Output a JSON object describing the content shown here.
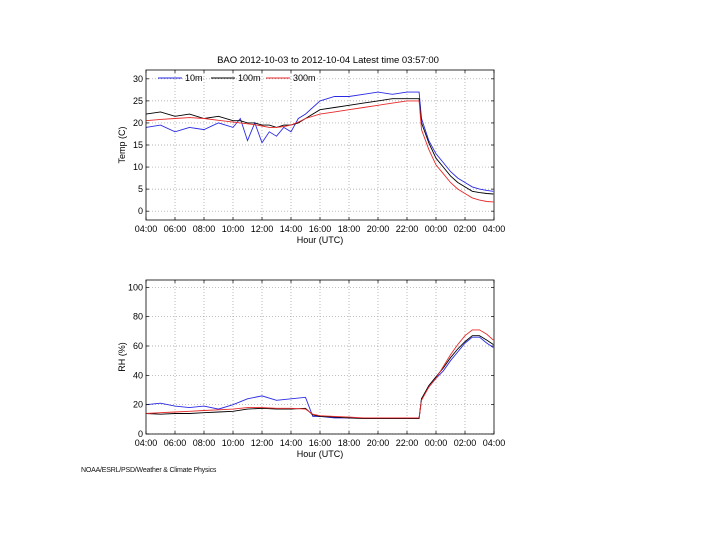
{
  "chart_data": [
    {
      "type": "line",
      "title": "BAO 2012-10-03 to 2012-10-04 Latest time 03:57:00",
      "xlabel": "Hour (UTC)",
      "ylabel": "Temp (C)",
      "xlim": [
        "04:00",
        "04:00"
      ],
      "ylim": [
        -2,
        32
      ],
      "yticks": [
        0,
        5,
        10,
        15,
        20,
        25,
        30
      ],
      "xticks": [
        "04:00",
        "06:00",
        "08:00",
        "10:00",
        "12:00",
        "14:00",
        "16:00",
        "18:00",
        "20:00",
        "22:00",
        "00:00",
        "02:00",
        "04:00"
      ],
      "grid": true,
      "legend": "top-left",
      "x": [
        "04:00",
        "05:00",
        "06:00",
        "07:00",
        "08:00",
        "09:00",
        "10:00",
        "10:30",
        "11:00",
        "11:30",
        "12:00",
        "12:30",
        "13:00",
        "13:30",
        "14:00",
        "14:30",
        "15:00",
        "16:00",
        "17:00",
        "18:00",
        "19:00",
        "20:00",
        "21:00",
        "22:00",
        "22:50",
        "23:00",
        "23:30",
        "00:00",
        "00:30",
        "01:00",
        "01:30",
        "02:00",
        "02:30",
        "03:00",
        "03:30",
        "03:57"
      ],
      "series": [
        {
          "name": "10m",
          "color": "#2a2ae6",
          "values": [
            19,
            19.5,
            18,
            19,
            18.5,
            20,
            19,
            21,
            16,
            20,
            15.5,
            18,
            17,
            19,
            18,
            21,
            22,
            25,
            26,
            26,
            26.5,
            27,
            26.5,
            27,
            27,
            21,
            16,
            13,
            11,
            9,
            7.5,
            6.5,
            5.5,
            5,
            4.7,
            4.5
          ]
        },
        {
          "name": "100m",
          "color": "#000000",
          "values": [
            22,
            22.5,
            21.5,
            22,
            21,
            21.5,
            20.5,
            20.5,
            20,
            20,
            19.5,
            19.5,
            19,
            19.5,
            19.5,
            20,
            21,
            23,
            23.5,
            24,
            24.5,
            25,
            25.5,
            25.5,
            25.5,
            20,
            15.5,
            12,
            10,
            8,
            6.5,
            5.5,
            4.5,
            4.2,
            4,
            3.9
          ]
        },
        {
          "name": "300m",
          "color": "#e82a2a",
          "values": [
            20.5,
            20.8,
            21,
            21.2,
            21,
            20.6,
            20.2,
            20,
            19.8,
            19.6,
            19.3,
            19,
            19,
            19.2,
            19.5,
            20.2,
            21,
            22,
            22.5,
            23,
            23.5,
            24,
            24.5,
            25,
            25,
            18.5,
            14,
            10.5,
            8.5,
            6.5,
            5,
            4,
            3,
            2.5,
            2.2,
            2.1
          ]
        }
      ]
    },
    {
      "type": "line",
      "title": "",
      "xlabel": "Hour (UTC)",
      "ylabel": "RH (%)",
      "xlim": [
        "04:00",
        "04:00"
      ],
      "ylim": [
        0,
        105
      ],
      "yticks": [
        0,
        20,
        40,
        60,
        80,
        100
      ],
      "xticks": [
        "04:00",
        "06:00",
        "08:00",
        "10:00",
        "12:00",
        "14:00",
        "16:00",
        "18:00",
        "20:00",
        "22:00",
        "00:00",
        "02:00",
        "04:00"
      ],
      "grid": true,
      "x": [
        "04:00",
        "05:00",
        "06:00",
        "07:00",
        "08:00",
        "09:00",
        "10:00",
        "11:00",
        "12:00",
        "13:00",
        "14:00",
        "15:00",
        "15:30",
        "16:00",
        "17:00",
        "18:00",
        "19:00",
        "20:00",
        "21:00",
        "22:00",
        "22:50",
        "23:00",
        "23:30",
        "00:00",
        "00:30",
        "01:00",
        "01:30",
        "02:00",
        "02:30",
        "03:00",
        "03:30",
        "03:57"
      ],
      "series": [
        {
          "name": "10m",
          "color": "#2a2ae6",
          "values": [
            20,
            21,
            19,
            18,
            19,
            17,
            20,
            24,
            26,
            23,
            24,
            25,
            12,
            12,
            11,
            11,
            11,
            11,
            11,
            11,
            11,
            24,
            32,
            38,
            43,
            50,
            56,
            62,
            66,
            66,
            62,
            59
          ]
        },
        {
          "name": "100m",
          "color": "#000000",
          "values": [
            14,
            13.5,
            14,
            14,
            14.5,
            15,
            15.5,
            17,
            17.5,
            17,
            17,
            17.5,
            13,
            12,
            11.5,
            11,
            10.5,
            10.5,
            10.5,
            10.5,
            10.5,
            24,
            33,
            39,
            45,
            52,
            58,
            63,
            67,
            67,
            64,
            61
          ]
        },
        {
          "name": "300m",
          "color": "#e82a2a",
          "values": [
            14,
            14.5,
            15,
            15.5,
            16,
            16.5,
            17,
            18,
            18,
            17.5,
            17.5,
            17,
            13.5,
            12.5,
            12,
            11.5,
            11,
            11,
            11,
            11,
            11,
            23,
            32,
            38,
            46,
            54,
            61,
            67,
            71,
            71,
            68,
            64
          ]
        }
      ]
    }
  ],
  "footer": "NOAA/ESRL/PSD/Weather & Climate Physics"
}
